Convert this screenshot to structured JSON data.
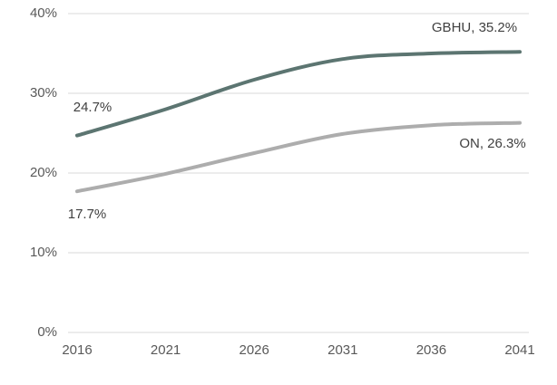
{
  "chart_data": {
    "type": "line",
    "title": "",
    "xlabel": "",
    "ylabel": "",
    "x": [
      2016,
      2021,
      2026,
      2031,
      2036,
      2041
    ],
    "xtick_labels": [
      "2016",
      "2021",
      "2026",
      "2031",
      "2036",
      "2041"
    ],
    "series": [
      {
        "name": "GBHU",
        "color": "#5c7571",
        "values": [
          24.7,
          28.0,
          31.7,
          34.3,
          35.0,
          35.2
        ]
      },
      {
        "name": "ON",
        "color": "#adadad",
        "values": [
          17.7,
          19.9,
          22.5,
          24.9,
          26.0,
          26.3
        ]
      }
    ],
    "ylim": [
      0,
      40
    ],
    "yticks": [
      0,
      10,
      20,
      30,
      40
    ],
    "ytick_labels": [
      "0%",
      "10%",
      "20%",
      "30%",
      "40%"
    ],
    "grid": "horizontal",
    "legend": "none",
    "line_style": "smooth",
    "annotations": [
      {
        "text": "24.7%",
        "series": "GBHU",
        "at": 2016
      },
      {
        "text": "17.7%",
        "series": "ON",
        "at": 2016
      },
      {
        "text": "GBHU, 35.2%",
        "series": "GBHU",
        "at": 2041
      },
      {
        "text": "ON, 26.3%",
        "series": "ON",
        "at": 2041
      }
    ],
    "colors": {
      "gridline": "#d9d9d9",
      "axis_text": "#595959",
      "label_text": "#404040",
      "background": "#ffffff"
    }
  }
}
